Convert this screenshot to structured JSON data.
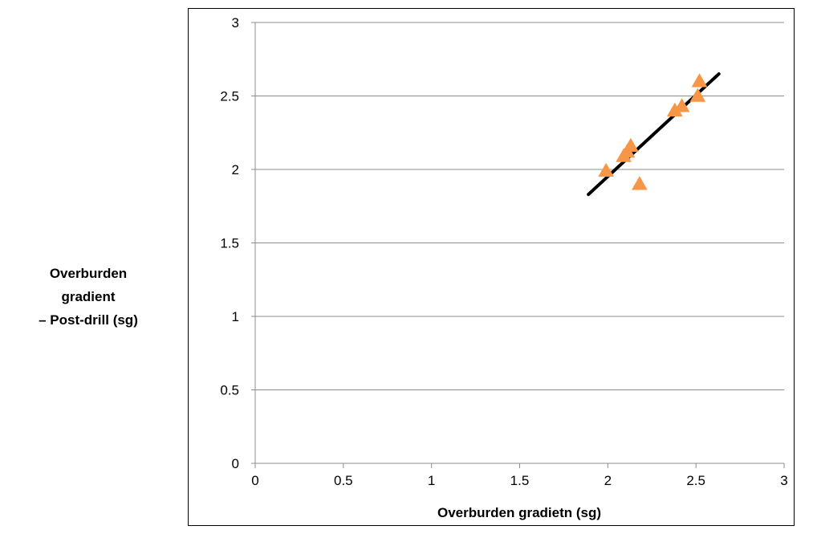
{
  "chart_data": {
    "type": "scatter",
    "title": "",
    "xlabel": "Overburden gradietn (sg)",
    "ylabel_lines": [
      "Overburden",
      "gradient",
      "– Post-drill (sg)"
    ],
    "xlim": [
      0,
      3
    ],
    "ylim": [
      0,
      3
    ],
    "xticks": [
      "0",
      "0.5",
      "1",
      "1.5",
      "2",
      "2.5",
      "3"
    ],
    "yticks": [
      "0",
      "0.5",
      "1",
      "1.5",
      "2",
      "2.5",
      "3"
    ],
    "grid": "horizontal",
    "legend": "none",
    "series": [
      {
        "marker": "triangle",
        "color": "#F79646",
        "points": [
          {
            "x": 1.99,
            "y": 1.99
          },
          {
            "x": 2.09,
            "y": 2.09
          },
          {
            "x": 2.11,
            "y": 2.12
          },
          {
            "x": 2.13,
            "y": 2.16
          },
          {
            "x": 2.18,
            "y": 1.9
          },
          {
            "x": 2.38,
            "y": 2.4
          },
          {
            "x": 2.42,
            "y": 2.43
          },
          {
            "x": 2.51,
            "y": 2.5
          },
          {
            "x": 2.52,
            "y": 2.6
          }
        ]
      }
    ],
    "trendline": {
      "color": "#000000",
      "x": [
        1.89,
        2.63
      ],
      "y": [
        1.83,
        2.65
      ]
    }
  }
}
